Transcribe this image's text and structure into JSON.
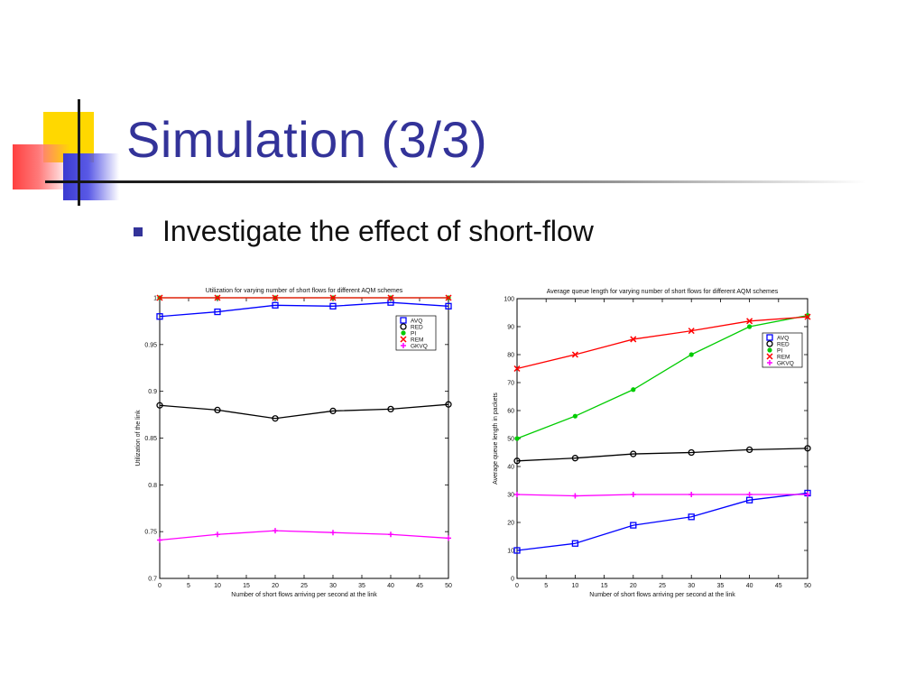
{
  "slide": {
    "title": "Simulation (3/3)",
    "bullet": "Investigate the effect of short-flow"
  },
  "chart_data": [
    {
      "type": "line",
      "title": "Utilization for varying number of short flows for different AQM schemes",
      "xlabel": "Number of short flows arriving per second at the link",
      "ylabel": "Utilization of the link",
      "x": [
        0,
        10,
        20,
        30,
        40,
        50
      ],
      "xlim": [
        0,
        50
      ],
      "ylim": [
        0.7,
        1
      ],
      "xticks": [
        0,
        5,
        10,
        15,
        20,
        25,
        30,
        35,
        40,
        45,
        50
      ],
      "yticks": [
        0.7,
        0.75,
        0.8,
        0.85,
        0.9,
        0.95,
        1
      ],
      "legend_position": "top-right",
      "series": [
        {
          "name": "AVQ",
          "color": "#0000ff",
          "marker": "square",
          "values": [
            0.98,
            0.985,
            0.992,
            0.991,
            0.995,
            0.991
          ]
        },
        {
          "name": "RED",
          "color": "#000000",
          "marker": "circle",
          "values": [
            0.885,
            0.88,
            0.871,
            0.879,
            0.881,
            0.886
          ]
        },
        {
          "name": "PI",
          "color": "#00cc00",
          "marker": "dot",
          "values": [
            1.0,
            1.0,
            1.0,
            1.0,
            1.0,
            1.0
          ]
        },
        {
          "name": "REM",
          "color": "#ff0000",
          "marker": "x",
          "values": [
            1.0,
            1.0,
            1.0,
            1.0,
            1.0,
            1.0
          ]
        },
        {
          "name": "GKVQ",
          "color": "#ff00ff",
          "marker": "plus",
          "values": [
            0.741,
            0.747,
            0.751,
            0.749,
            0.747,
            0.743
          ]
        }
      ]
    },
    {
      "type": "line",
      "title": "Average queue length for varying number of short flows for different AQM schemes",
      "xlabel": "Number of short flows arriving per second at the link",
      "ylabel": "Average queue length in packets",
      "x": [
        0,
        10,
        20,
        30,
        40,
        50
      ],
      "xlim": [
        0,
        50
      ],
      "ylim": [
        0,
        100
      ],
      "xticks": [
        0,
        5,
        10,
        15,
        20,
        25,
        30,
        35,
        40,
        45,
        50
      ],
      "yticks": [
        0,
        10,
        20,
        30,
        40,
        50,
        60,
        70,
        80,
        90,
        100
      ],
      "legend_position": "top-right",
      "series": [
        {
          "name": "AVQ",
          "color": "#0000ff",
          "marker": "square",
          "values": [
            10,
            12.5,
            19,
            22,
            28,
            30.5
          ]
        },
        {
          "name": "RED",
          "color": "#000000",
          "marker": "circle",
          "values": [
            42,
            43,
            44.5,
            45,
            46,
            46.5
          ]
        },
        {
          "name": "PI",
          "color": "#00cc00",
          "marker": "dot",
          "values": [
            50,
            58,
            67.5,
            80,
            90,
            94
          ]
        },
        {
          "name": "REM",
          "color": "#ff0000",
          "marker": "x",
          "values": [
            75,
            80,
            85.5,
            88.5,
            92,
            93.5
          ]
        },
        {
          "name": "GKVQ",
          "color": "#ff00ff",
          "marker": "plus",
          "values": [
            30,
            29.5,
            30,
            30,
            30,
            30
          ]
        }
      ]
    }
  ]
}
